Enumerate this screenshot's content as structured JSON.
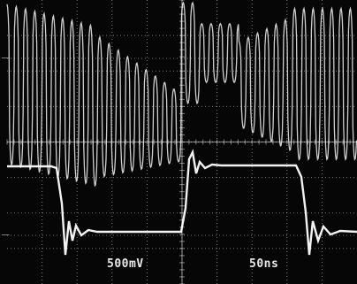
{
  "readouts": {
    "volts_per_div": "500mV",
    "time_per_div": "50ns"
  },
  "display": {
    "background_color": "#060606",
    "trace_color": "#f2f2f2",
    "graticule_color": "#d8d8d8",
    "divisions_horizontal": 10,
    "divisions_vertical": 8
  }
}
